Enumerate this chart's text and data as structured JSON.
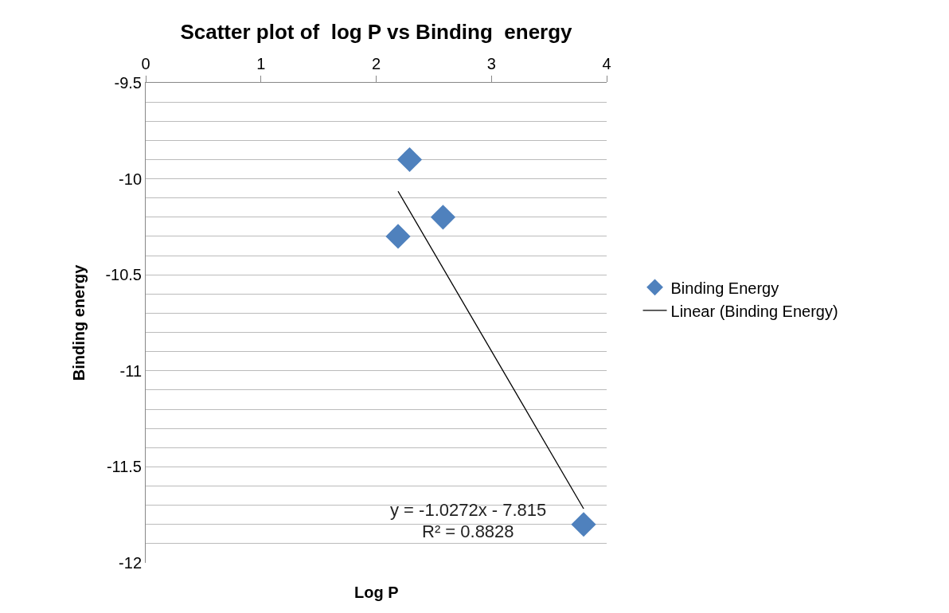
{
  "chart_data": {
    "type": "scatter",
    "title": "Scatter plot of  log P vs Binding  energy",
    "xlabel": "Log P",
    "ylabel": "Binding energy",
    "series": [
      {
        "name": "Binding Energy",
        "color": "#4f81bd",
        "marker": "diamond",
        "x": [
          2.29,
          2.19,
          2.58,
          3.8
        ],
        "values": [
          -9.9,
          -10.3,
          -10.2,
          -11.8
        ]
      },
      {
        "name": "Linear (Binding Energy)",
        "type": "line",
        "color": "#000000",
        "marker": "none",
        "line_style": "solid",
        "x": [
          2.19,
          3.8
        ],
        "values": [
          -10.065,
          -11.718
        ]
      }
    ],
    "xlim": [
      0,
      4
    ],
    "xticks": [
      0,
      1,
      2,
      3,
      4
    ],
    "ylim": [
      -12,
      -9.5
    ],
    "yticks": [
      -12,
      {
        "value": -11.9,
        "label": null
      },
      {
        "value": -11.8,
        "label": null
      },
      {
        "value": -11.7,
        "label": null
      },
      {
        "value": -11.6,
        "label": null
      },
      -11.5,
      {
        "value": -11.4,
        "label": null
      },
      {
        "value": -11.3,
        "label": null
      },
      {
        "value": -11.2,
        "label": null
      },
      {
        "value": -11.1,
        "label": null
      },
      -11,
      {
        "value": -10.9,
        "label": null
      },
      {
        "value": -10.8,
        "label": null
      },
      {
        "value": -10.7,
        "label": null
      },
      {
        "value": -10.6,
        "label": null
      },
      -10.5,
      {
        "value": -10.4,
        "label": null
      },
      {
        "value": -10.3,
        "label": null
      },
      {
        "value": -10.2,
        "label": null
      },
      {
        "value": -10.1,
        "label": null
      },
      -10,
      {
        "value": -9.9,
        "label": null
      },
      {
        "value": -9.8,
        "label": null
      },
      {
        "value": -9.7,
        "label": null
      },
      {
        "value": -9.6,
        "label": null
      },
      -9.5
    ],
    "grid": "y",
    "legend": "right",
    "annotations": [
      "y = -1.0272x - 7.815",
      "R² = 0.8828"
    ]
  }
}
